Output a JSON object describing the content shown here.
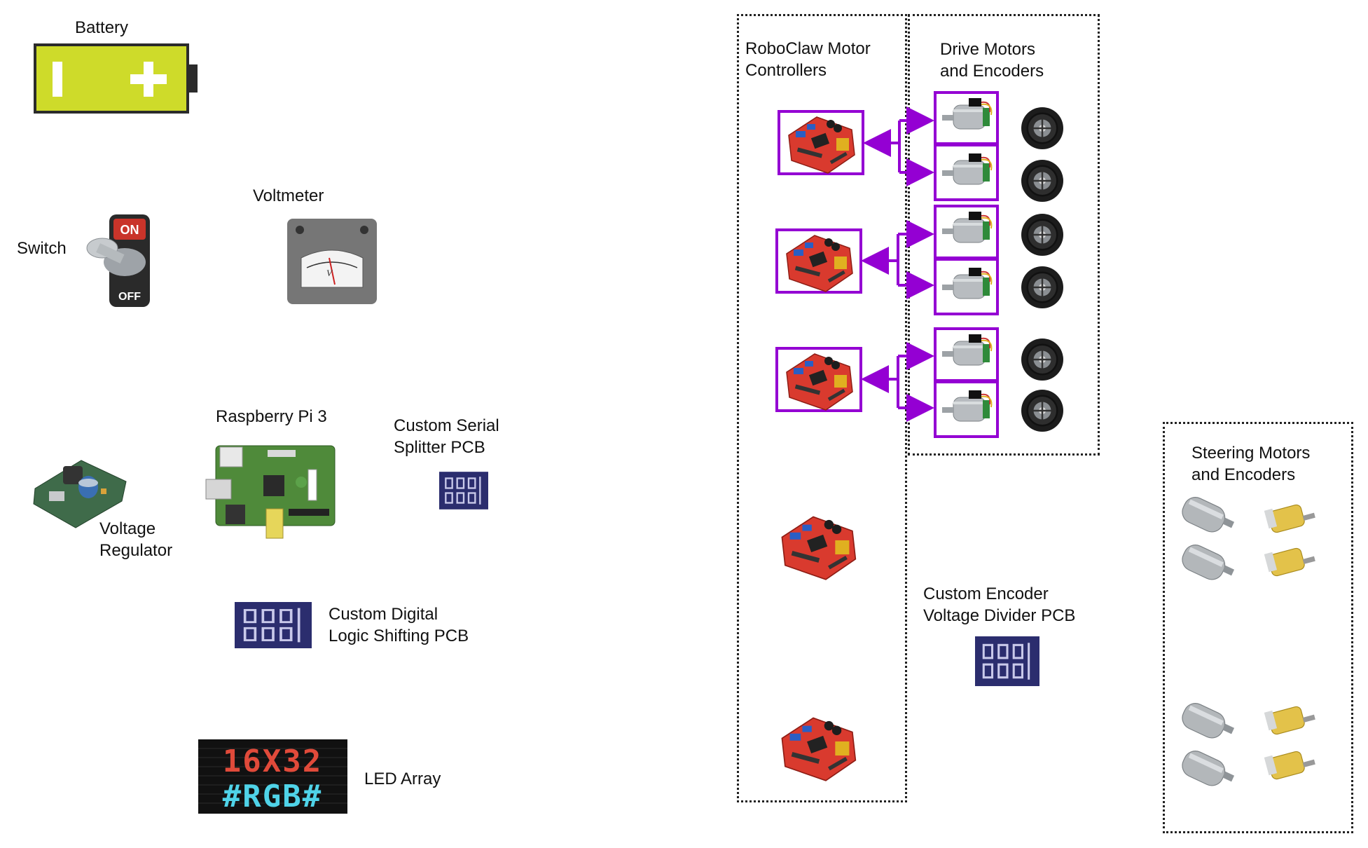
{
  "labels": {
    "battery": "Battery",
    "switch": "Switch",
    "voltmeter": "Voltmeter",
    "raspberry_pi": "Raspberry Pi 3",
    "serial_splitter_line1": "Custom Serial",
    "serial_splitter_line2": "Splitter PCB",
    "voltage_regulator_line1": "Voltage",
    "voltage_regulator_line2": "Regulator",
    "logic_shifting_line1": "Custom Digital",
    "logic_shifting_line2": "Logic Shifting PCB",
    "led_array": "LED Array",
    "roboclaw_line1": "RoboClaw Motor",
    "roboclaw_line2": "Controllers",
    "drive_motors_line1": "Drive Motors",
    "drive_motors_line2": "and Encoders",
    "encoder_divider_line1": "Custom Encoder",
    "encoder_divider_line2": "Voltage Divider PCB",
    "steering_line1": "Steering Motors",
    "steering_line2": "and Encoders"
  },
  "switch_text": {
    "on": "ON",
    "off": "OFF"
  },
  "voltmeter_text": {
    "unit": "V"
  },
  "led_array_text": {
    "line1": "16X32",
    "line2": "#RGB#"
  },
  "colors": {
    "battery_fill": "#cedb2a",
    "connector_purple": "#9400d3",
    "board_red": "#d93a2e",
    "pcb_blue": "#2b2d6e",
    "pi_green": "#4f8a3a"
  }
}
